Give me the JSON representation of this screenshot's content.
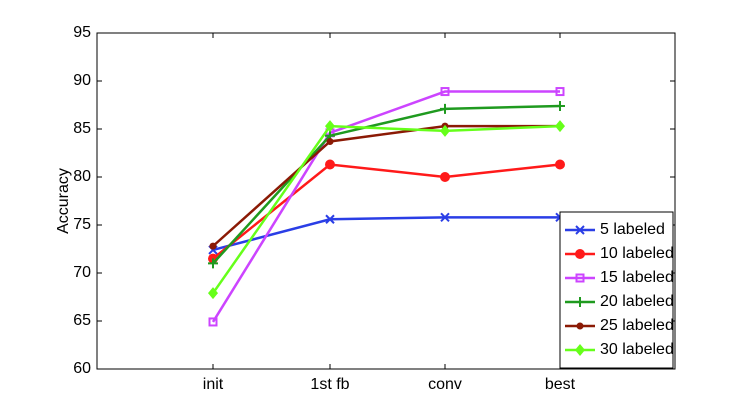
{
  "chart_data": {
    "type": "line",
    "y_label": "Accuracy",
    "categories": [
      "init",
      "1st fb",
      "conv",
      "best"
    ],
    "ylim": [
      60,
      95
    ],
    "yticks": [
      60,
      65,
      70,
      75,
      80,
      85,
      90,
      95
    ],
    "legend": "lower right",
    "series": [
      {
        "name": "5 labeled",
        "color": "#2a3ee6",
        "marker": "x",
        "values": [
          72.4,
          75.6,
          75.8,
          75.8
        ]
      },
      {
        "name": "10 labeled",
        "color": "#ff1a1a",
        "marker": "circle",
        "values": [
          71.5,
          81.3,
          80.0,
          81.3
        ]
      },
      {
        "name": "15 labeled",
        "color": "#cc44ff",
        "marker": "square",
        "values": [
          64.9,
          84.6,
          88.9,
          88.9
        ]
      },
      {
        "name": "20 labeled",
        "color": "#1f9a1f",
        "marker": "plus",
        "values": [
          71.0,
          84.3,
          87.1,
          87.4
        ]
      },
      {
        "name": "25 labeled",
        "color": "#8b1a05",
        "marker": "dot",
        "values": [
          72.8,
          83.7,
          85.3,
          85.3
        ]
      },
      {
        "name": "30 labeled",
        "color": "#66ff1a",
        "marker": "diamond",
        "values": [
          67.9,
          85.3,
          84.8,
          85.3
        ]
      }
    ]
  }
}
